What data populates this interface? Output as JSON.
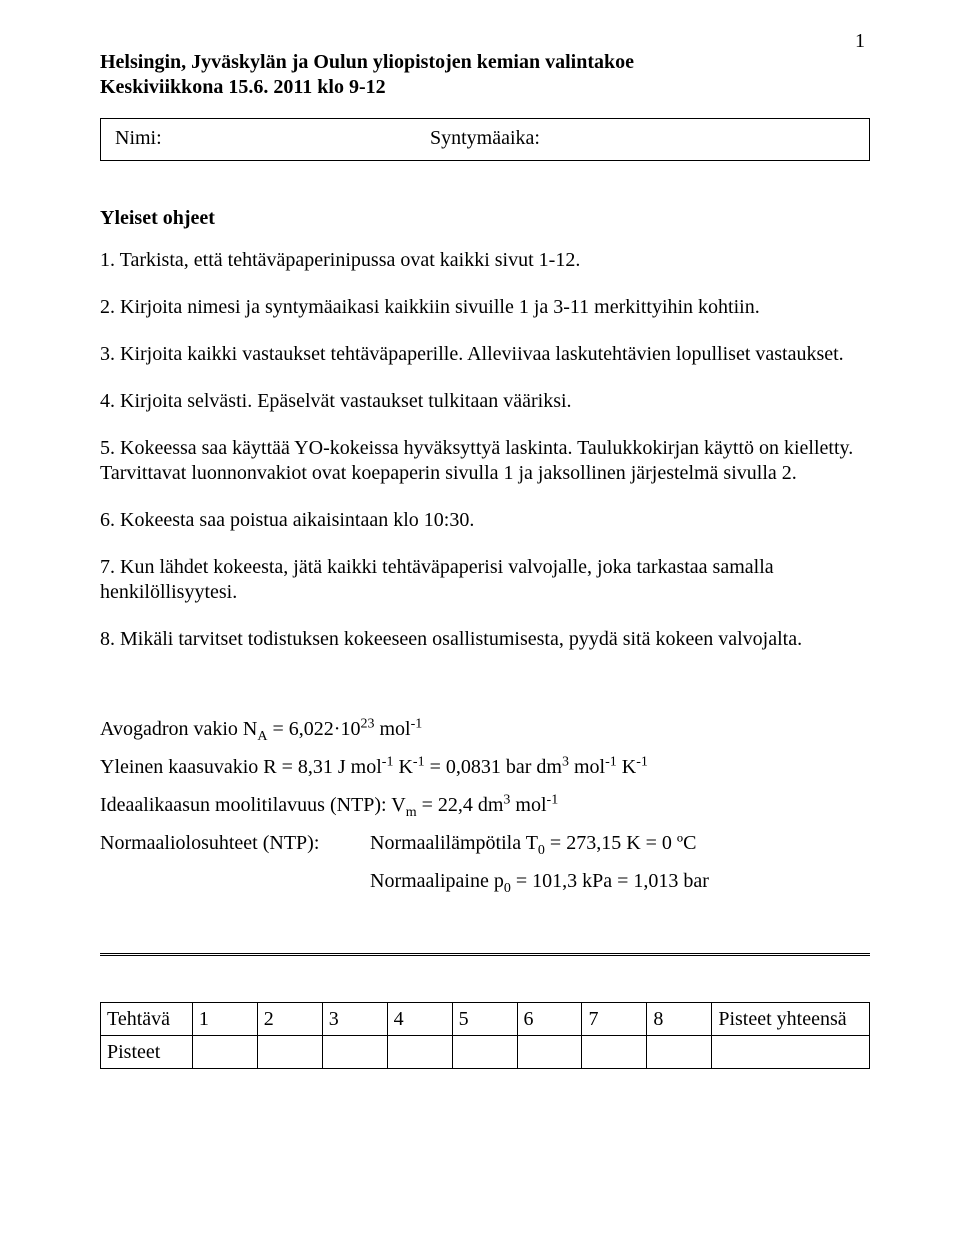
{
  "page_number": "1",
  "header": {
    "line1": "Helsingin, Jyväskylän ja Oulun yliopistojen kemian valintakoe",
    "line2": "Keskiviikkona 15.6. 2011 klo 9-12"
  },
  "name_box": {
    "nimi_label": "Nimi:",
    "synt_label": "Syntymäaika:"
  },
  "section_heading": "Yleiset ohjeet",
  "instructions": {
    "i1": "1. Tarkista, että tehtäväpaperinipussa ovat kaikki sivut 1-12.",
    "i2": "2. Kirjoita nimesi ja syntymäaikasi kaikkiin sivuille 1 ja 3-11 merkittyihin kohtiin.",
    "i3": "3. Kirjoita kaikki vastaukset tehtäväpaperille. Alleviivaa laskutehtävien lopulliset vastaukset.",
    "i4": "4. Kirjoita selvästi. Epäselvät vastaukset tulkitaan vääriksi.",
    "i5": "5. Kokeessa saa käyttää YO-kokeissa hyväksyttyä laskinta. Taulukkokirjan käyttö on kielletty. Tarvittavat luonnonvakiot ovat koepaperin sivulla 1 ja jaksollinen järjestelmä sivulla 2.",
    "i6": "6. Kokeesta saa poistua aikaisintaan klo 10:30.",
    "i7": "7. Kun lähdet kokeesta, jätä kaikki tehtäväpaperisi valvojalle, joka tarkastaa samalla henkilöllisyytesi.",
    "i8": "8. Mikäli tarvitset todistuksen kokeeseen osallistumisesta, pyydä sitä kokeen valvojalta."
  },
  "constants": {
    "avogadro_html": "Avogadron vakio N<sub>A</sub> = 6,022·10<sup>23</sup> mol<sup>-1</sup>",
    "gas_html": "Yleinen kaasuvakio R = 8,31 J mol<sup>-1</sup> K<sup>-1</sup> = 0,0831 bar dm<sup>3</sup> mol<sup>-1</sup> K<sup>-1</sup>",
    "molar_vol_html": "Ideaalikaasun moolitilavuus (NTP): V<sub>m</sub> = 22,4 dm<sup>3</sup> mol<sup>-1</sup>",
    "ntp_label": "Normaaliolosuhteet (NTP):",
    "ntp_temp_html": "Normaalilämpötila T<sub>0</sub> = 273,15 K = 0 ºC",
    "ntp_pressure_html": "Normaalipaine p<sub>0</sub> = 101,3 kPa = 1,013 bar"
  },
  "score_table": {
    "row1_label": "Tehtävä",
    "row2_label": "Pisteet",
    "cols": [
      "1",
      "2",
      "3",
      "4",
      "5",
      "6",
      "7",
      "8"
    ],
    "total_label": "Pisteet yhteensä"
  }
}
